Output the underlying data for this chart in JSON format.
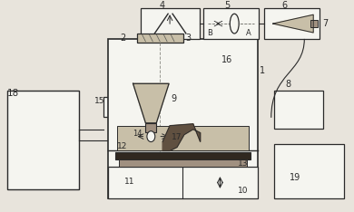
{
  "bg_color": "#e8e4dc",
  "line_color": "#2a2a2a",
  "fill_light": "#c8bfa8",
  "fill_medium": "#a09080",
  "fill_dark": "#605040",
  "fill_darkest": "#302820",
  "white": "#f5f5f0"
}
